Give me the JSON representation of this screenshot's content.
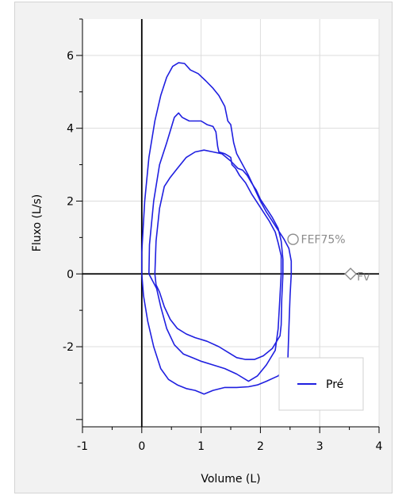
{
  "chart_data": {
    "type": "line",
    "title": "",
    "xlabel": "Volume (L)",
    "ylabel": "Fluxo (L/s)",
    "xlim": [
      -1,
      4
    ],
    "ylim": [
      -4.2,
      7.0
    ],
    "xticks": [
      -1,
      0,
      1,
      2,
      3,
      4
    ],
    "xtick_labels": [
      "-1",
      "0",
      "1",
      "2",
      "3",
      "4"
    ],
    "yticks": [
      -2,
      0,
      2,
      4,
      6
    ],
    "ytick_labels": [
      "-2",
      "0",
      "2",
      "4",
      "6"
    ],
    "grid": true,
    "legend": {
      "entries": [
        "Pré"
      ],
      "placement": "bottom-right"
    },
    "series_color": "#1f1fe0",
    "annotations": [
      {
        "label": "FEF75%",
        "marker": "circle",
        "x": 2.55,
        "y": 0.95
      },
      {
        "label": "Fv",
        "marker": "diamond",
        "x": 3.52,
        "y": 0.0
      }
    ],
    "series": [
      {
        "name": "Pré",
        "loops": [
          [
            [
              0.0,
              0
            ],
            [
              0.0,
              0.6
            ],
            [
              0.05,
              2.0
            ],
            [
              0.12,
              3.2
            ],
            [
              0.22,
              4.2
            ],
            [
              0.32,
              4.9
            ],
            [
              0.42,
              5.4
            ],
            [
              0.52,
              5.7
            ],
            [
              0.62,
              5.8
            ],
            [
              0.72,
              5.78
            ],
            [
              0.82,
              5.6
            ],
            [
              0.95,
              5.5
            ],
            [
              1.08,
              5.3
            ],
            [
              1.2,
              5.1
            ],
            [
              1.3,
              4.9
            ],
            [
              1.4,
              4.6
            ],
            [
              1.45,
              4.2
            ],
            [
              1.5,
              4.1
            ],
            [
              1.52,
              3.9
            ],
            [
              1.55,
              3.6
            ],
            [
              1.6,
              3.3
            ],
            [
              1.7,
              3.0
            ],
            [
              1.8,
              2.7
            ],
            [
              1.9,
              2.35
            ],
            [
              2.0,
              2.0
            ],
            [
              2.1,
              1.7
            ],
            [
              2.2,
              1.45
            ],
            [
              2.3,
              1.2
            ],
            [
              2.4,
              0.95
            ],
            [
              2.48,
              0.7
            ],
            [
              2.52,
              0.35
            ],
            [
              2.52,
              0.0
            ],
            [
              2.5,
              -0.6
            ],
            [
              2.48,
              -1.5
            ],
            [
              2.46,
              -2.5
            ],
            [
              2.3,
              -2.8
            ],
            [
              2.1,
              -2.95
            ],
            [
              1.95,
              -3.05
            ],
            [
              1.8,
              -3.1
            ],
            [
              1.6,
              -3.12
            ],
            [
              1.4,
              -3.12
            ],
            [
              1.2,
              -3.2
            ],
            [
              1.05,
              -3.3
            ],
            [
              0.9,
              -3.2
            ],
            [
              0.75,
              -3.15
            ],
            [
              0.6,
              -3.05
            ],
            [
              0.45,
              -2.9
            ],
            [
              0.32,
              -2.6
            ],
            [
              0.2,
              -2.0
            ],
            [
              0.1,
              -1.3
            ],
            [
              0.03,
              -0.6
            ],
            [
              0.0,
              0
            ]
          ],
          [
            [
              0.12,
              0
            ],
            [
              0.13,
              0.8
            ],
            [
              0.2,
              2.0
            ],
            [
              0.3,
              3.0
            ],
            [
              0.42,
              3.6
            ],
            [
              0.55,
              4.3
            ],
            [
              0.62,
              4.42
            ],
            [
              0.68,
              4.3
            ],
            [
              0.8,
              4.2
            ],
            [
              0.92,
              4.2
            ],
            [
              1.0,
              4.2
            ],
            [
              1.1,
              4.1
            ],
            [
              1.2,
              4.05
            ],
            [
              1.25,
              3.9
            ],
            [
              1.28,
              3.5
            ],
            [
              1.3,
              3.35
            ],
            [
              1.4,
              3.3
            ],
            [
              1.45,
              3.25
            ],
            [
              1.5,
              3.2
            ],
            [
              1.52,
              3.0
            ],
            [
              1.58,
              2.9
            ],
            [
              1.65,
              2.7
            ],
            [
              1.75,
              2.5
            ],
            [
              1.85,
              2.2
            ],
            [
              1.95,
              1.95
            ],
            [
              2.05,
              1.7
            ],
            [
              2.15,
              1.45
            ],
            [
              2.25,
              1.15
            ],
            [
              2.3,
              0.85
            ],
            [
              2.35,
              0.5
            ],
            [
              2.35,
              0.0
            ],
            [
              2.33,
              -0.6
            ],
            [
              2.3,
              -1.5
            ],
            [
              2.25,
              -2.1
            ],
            [
              2.1,
              -2.5
            ],
            [
              1.95,
              -2.8
            ],
            [
              1.8,
              -2.95
            ],
            [
              1.6,
              -2.75
            ],
            [
              1.4,
              -2.6
            ],
            [
              1.2,
              -2.5
            ],
            [
              1.0,
              -2.4
            ],
            [
              0.85,
              -2.3
            ],
            [
              0.7,
              -2.2
            ],
            [
              0.55,
              -1.95
            ],
            [
              0.42,
              -1.5
            ],
            [
              0.32,
              -0.9
            ],
            [
              0.25,
              -0.4
            ],
            [
              0.12,
              0
            ]
          ],
          [
            [
              0.22,
              0
            ],
            [
              0.24,
              0.9
            ],
            [
              0.3,
              1.8
            ],
            [
              0.38,
              2.4
            ],
            [
              0.48,
              2.65
            ],
            [
              0.6,
              2.9
            ],
            [
              0.75,
              3.2
            ],
            [
              0.9,
              3.35
            ],
            [
              1.05,
              3.4
            ],
            [
              1.2,
              3.35
            ],
            [
              1.35,
              3.3
            ],
            [
              1.5,
              3.1
            ],
            [
              1.62,
              2.9
            ],
            [
              1.7,
              2.85
            ],
            [
              1.78,
              2.7
            ],
            [
              1.85,
              2.5
            ],
            [
              1.93,
              2.3
            ],
            [
              2.0,
              2.05
            ],
            [
              2.1,
              1.8
            ],
            [
              2.2,
              1.55
            ],
            [
              2.3,
              1.25
            ],
            [
              2.35,
              0.9
            ],
            [
              2.38,
              0.4
            ],
            [
              2.38,
              0.0
            ],
            [
              2.36,
              -0.7
            ],
            [
              2.35,
              -1.4
            ],
            [
              2.33,
              -1.7
            ],
            [
              2.2,
              -2.05
            ],
            [
              2.05,
              -2.25
            ],
            [
              1.9,
              -2.35
            ],
            [
              1.75,
              -2.35
            ],
            [
              1.6,
              -2.3
            ],
            [
              1.45,
              -2.15
            ],
            [
              1.3,
              -2.0
            ],
            [
              1.1,
              -1.85
            ],
            [
              0.9,
              -1.75
            ],
            [
              0.75,
              -1.65
            ],
            [
              0.6,
              -1.5
            ],
            [
              0.48,
              -1.25
            ],
            [
              0.38,
              -0.9
            ],
            [
              0.3,
              -0.5
            ],
            [
              0.24,
              -0.3
            ],
            [
              0.22,
              0
            ]
          ]
        ]
      }
    ]
  }
}
